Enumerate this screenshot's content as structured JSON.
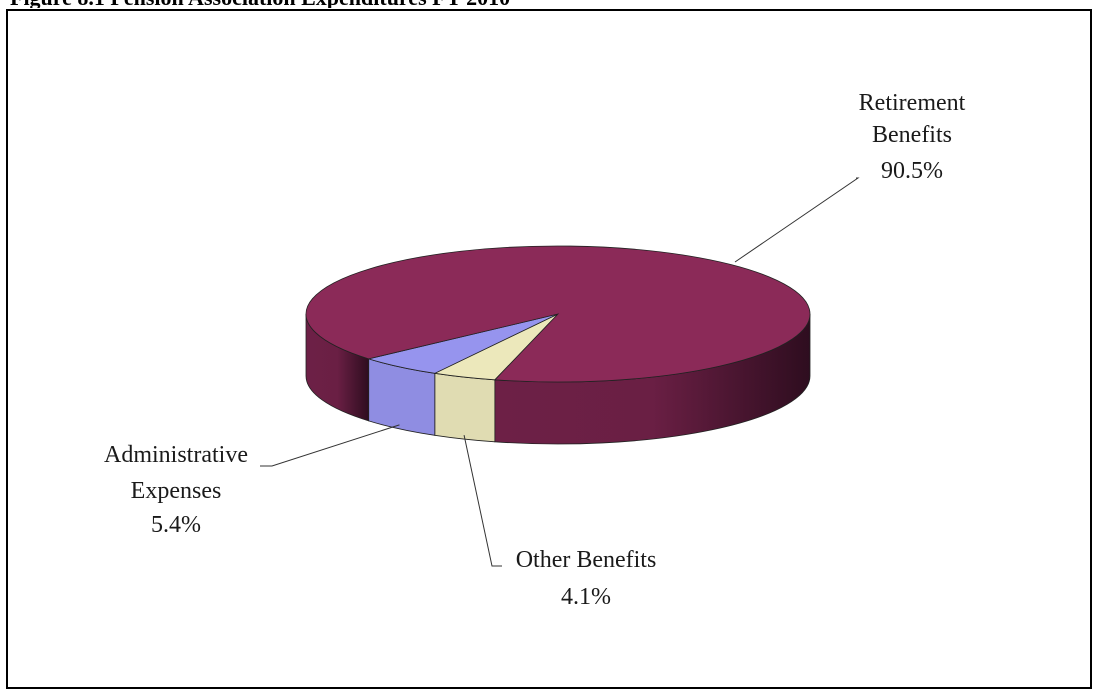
{
  "figure": {
    "heading": "Figure 8.1 Pension Association Expenditures FY 2010"
  },
  "chart_data": {
    "type": "pie",
    "title": "",
    "categories": [
      "Retirement Benefits",
      "Other Benefits",
      "Administrative Expenses"
    ],
    "values": [
      90.5,
      4.1,
      5.4
    ],
    "colors": [
      "#8b2a58",
      "#ece8bb",
      "#9694ee"
    ],
    "labels": [
      {
        "lines": [
          "Retirement",
          "Benefits"
        ],
        "pct": "90.5%"
      },
      {
        "lines": [
          "Other Benefits"
        ],
        "pct": "4.1%"
      },
      {
        "lines": [
          "Administrative",
          "Expenses"
        ],
        "pct": "5.4%"
      }
    ],
    "legend": "none",
    "style": "3d"
  }
}
